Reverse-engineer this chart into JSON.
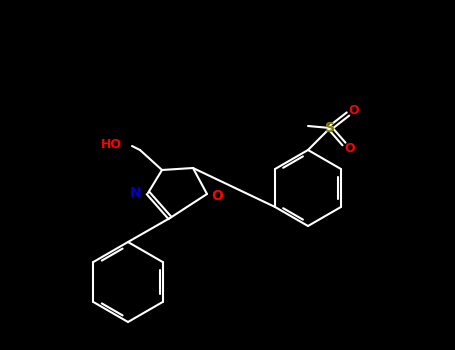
{
  "bg_color": "#000000",
  "bond_color": "#ffffff",
  "bond_width": 1.5,
  "atom_colors": {
    "O": "#ff0000",
    "N": "#0000cc",
    "S": "#808000",
    "C": "#ffffff",
    "HO": "#ff0000"
  },
  "figsize": [
    4.55,
    3.5
  ],
  "dpi": 100
}
